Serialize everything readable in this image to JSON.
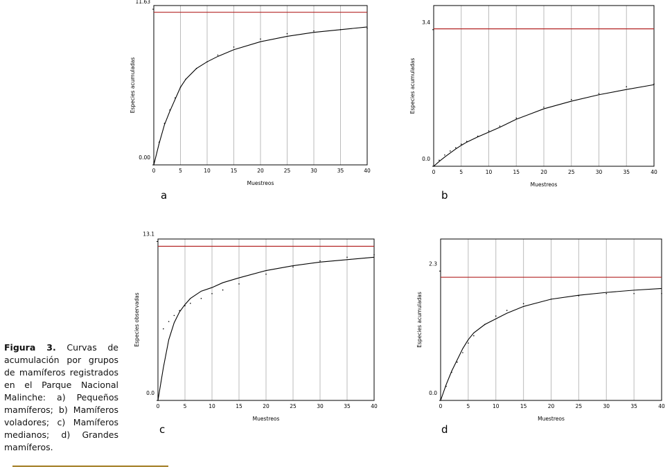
{
  "chart_data": [
    {
      "type": "line",
      "panel": "a",
      "xlabel": "Muestreos",
      "ylabel": "Especies acumuladas",
      "x": [
        0,
        1,
        2,
        3,
        4,
        5,
        6,
        8,
        10,
        12,
        15,
        20,
        25,
        30,
        35,
        40
      ],
      "xlim": [
        0,
        40
      ],
      "xticks": [
        0,
        5,
        10,
        15,
        20,
        25,
        30,
        35,
        40
      ],
      "ylim": [
        0,
        11.9
      ],
      "yticks": [
        {
          "value": 0,
          "label": "0.00"
        },
        11.63
      ],
      "grid": "x",
      "series": [
        {
          "color": "#000000",
          "marker": "none",
          "values": [
            0,
            1.6,
            3.0,
            4.0,
            4.9,
            5.8,
            6.4,
            7.2,
            7.7,
            8.1,
            8.6,
            9.2,
            9.6,
            9.9,
            10.1,
            10.3
          ]
        },
        {
          "color": "#000000",
          "marker": "dot",
          "values": [
            0,
            1.7,
            3.1,
            4.1,
            5.0,
            5.8,
            6.4,
            7.2,
            7.7,
            8.2,
            8.8,
            9.4,
            9.8,
            10.0,
            10.1,
            10.2
          ]
        }
      ],
      "asymptote": {
        "value": 11.4,
        "color": "#b22222"
      }
    },
    {
      "type": "line",
      "panel": "b",
      "xlabel": "Muestreos",
      "ylabel": "Especies acumuladas",
      "x": [
        0,
        1,
        2,
        3,
        4,
        5,
        6,
        8,
        10,
        12,
        15,
        20,
        25,
        30,
        35,
        40
      ],
      "xlim": [
        0,
        40
      ],
      "xticks": [
        0,
        5,
        10,
        15,
        20,
        25,
        30,
        35,
        40
      ],
      "ylim": [
        0,
        4.0
      ],
      "yticks": [
        {
          "value": 0,
          "label": "0.0"
        },
        3.4
      ],
      "grid": "x",
      "series": [
        {
          "color": "#000000",
          "marker": "none",
          "values": [
            0,
            0.12,
            0.23,
            0.33,
            0.43,
            0.52,
            0.6,
            0.73,
            0.85,
            0.97,
            1.17,
            1.43,
            1.62,
            1.78,
            1.91,
            2.03
          ]
        },
        {
          "color": "#000000",
          "marker": "dot",
          "values": [
            0,
            0.15,
            0.28,
            0.38,
            0.46,
            0.55,
            0.62,
            0.75,
            0.88,
            1.0,
            1.2,
            1.47,
            1.66,
            1.81,
            1.98,
            2.05
          ]
        }
      ],
      "asymptote": {
        "value": 3.42,
        "color": "#b22222"
      }
    },
    {
      "type": "line",
      "panel": "c",
      "xlabel": "Muestreos",
      "ylabel": "Especies observadas",
      "x": [
        0,
        1,
        2,
        3,
        4,
        5,
        6,
        8,
        10,
        12,
        15,
        20,
        25,
        30,
        35,
        40
      ],
      "xlim": [
        0,
        40
      ],
      "xticks": [
        0,
        5,
        10,
        15,
        20,
        25,
        30,
        35,
        40
      ],
      "ylim": [
        0,
        13.3
      ],
      "yticks": [
        {
          "value": 0,
          "label": "0.0"
        },
        13.1
      ],
      "grid": "x",
      "series": [
        {
          "color": "#000000",
          "marker": "none",
          "values": [
            0,
            2.7,
            5.0,
            6.4,
            7.3,
            7.9,
            8.4,
            9.0,
            9.3,
            9.7,
            10.1,
            10.7,
            11.1,
            11.4,
            11.6,
            11.8
          ]
        },
        {
          "color": "#000000",
          "marker": "dot",
          "values": [
            0,
            5.9,
            6.5,
            7.0,
            7.4,
            7.8,
            8.0,
            8.4,
            8.8,
            9.1,
            9.6,
            10.4,
            11.0,
            11.5,
            11.8,
            12.0
          ]
        }
      ],
      "asymptote": {
        "value": 12.7,
        "color": "#b22222"
      }
    },
    {
      "type": "line",
      "panel": "d",
      "xlabel": "Muestreos",
      "ylabel": "Especies acumuladas",
      "x": [
        0,
        1,
        2,
        3,
        4,
        5,
        6,
        8,
        10,
        12,
        15,
        20,
        25,
        30,
        35,
        40
      ],
      "xlim": [
        0,
        40
      ],
      "xticks": [
        0,
        5,
        10,
        15,
        20,
        25,
        30,
        35,
        40
      ],
      "ylim": [
        0,
        2.87
      ],
      "yticks": [
        {
          "value": 0,
          "label": "0.0"
        },
        2.3
      ],
      "grid": "x",
      "series": [
        {
          "color": "#000000",
          "marker": "none",
          "values": [
            0,
            0.28,
            0.52,
            0.72,
            0.92,
            1.08,
            1.2,
            1.35,
            1.45,
            1.55,
            1.67,
            1.8,
            1.87,
            1.92,
            1.96,
            1.99
          ]
        },
        {
          "color": "#000000",
          "marker": "dot",
          "values": [
            0,
            0.25,
            0.5,
            0.68,
            0.85,
            1.02,
            1.15,
            1.35,
            1.5,
            1.6,
            1.72,
            1.8,
            1.86,
            1.9,
            1.9,
            1.9
          ]
        }
      ],
      "asymptote": {
        "value": 2.19,
        "color": "#b22222"
      }
    }
  ],
  "caption": {
    "label": "Figura 3.",
    "text": "Curvas de acumulación por grupos de mamíferos registrados en el Parque Nacional Malinche: a) Pequeños mamíferos; b) Mamíferos voladores; c) Mamíferos medianos; d) Grandes mamíferos."
  }
}
